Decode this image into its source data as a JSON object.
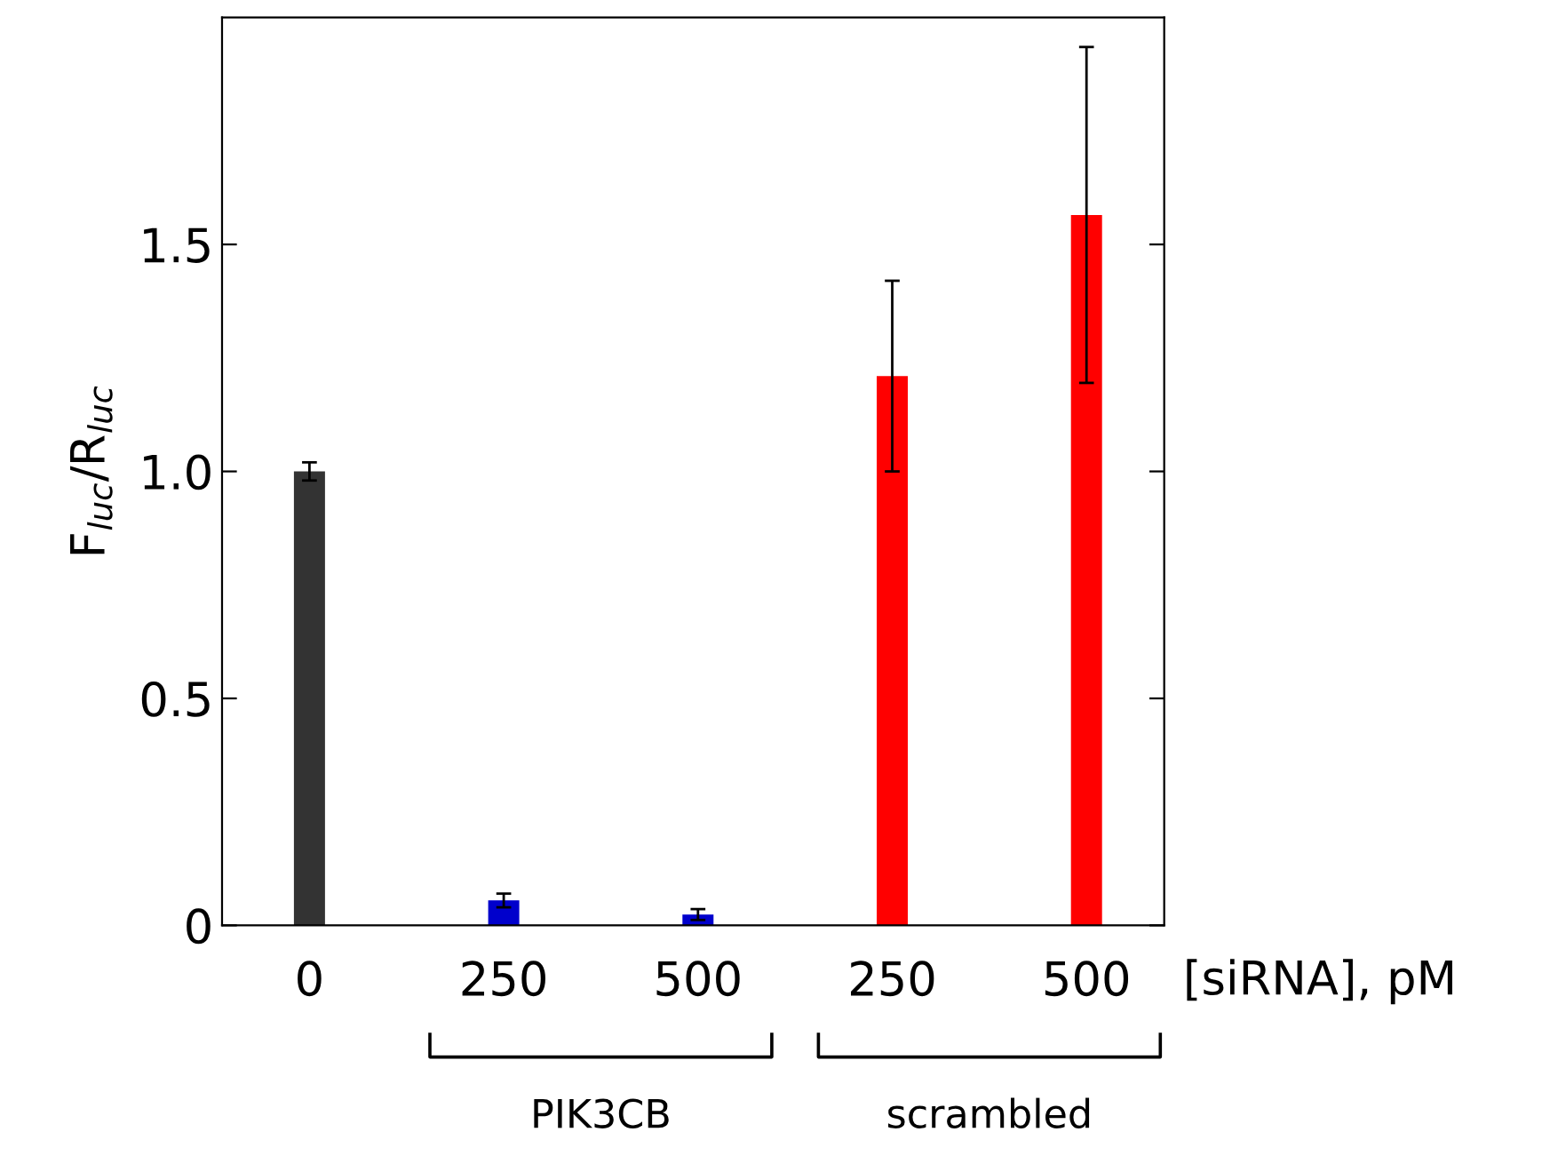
{
  "chart_data": {
    "type": "bar",
    "ylabel": "F$_{luc}$/R$_{luc}$",
    "xlabel": "[siRNA], pM",
    "categories": [
      "0",
      "250",
      "500",
      "250",
      "500"
    ],
    "values": [
      1.0,
      0.055,
      0.024,
      1.21,
      1.565
    ],
    "errors": [
      0.02,
      0.015,
      0.012,
      0.21,
      0.37
    ],
    "colors": [
      "#333333",
      "#0000cc",
      "#0000cc",
      "#ff0000",
      "#ff0000"
    ],
    "ylim": [
      0,
      2.0
    ],
    "yticks": [
      {
        "value": 0,
        "label": "0"
      },
      {
        "value": 0.5,
        "label": "0.5"
      },
      {
        "value": 1.0,
        "label": "1.0"
      },
      {
        "value": 1.5,
        "label": "1.5"
      }
    ],
    "annotations": [
      "PIK3CB",
      "scrambled"
    ],
    "grid": false,
    "legend": false
  }
}
